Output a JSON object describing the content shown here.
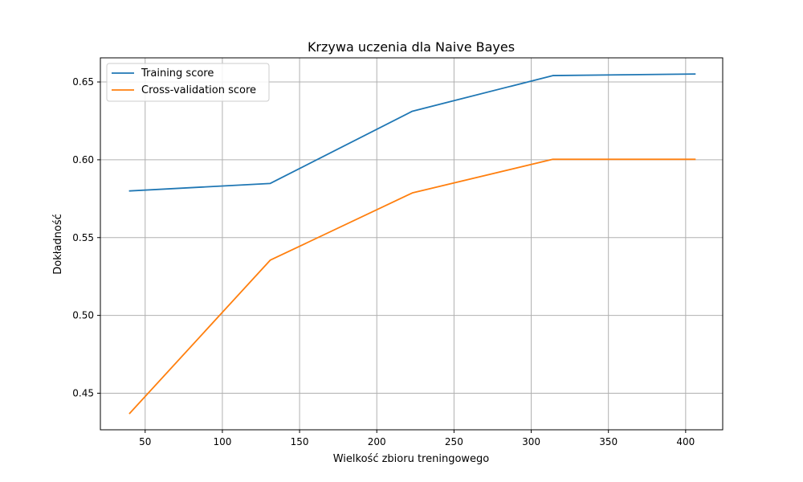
{
  "chart_data": {
    "type": "line",
    "title": "Krzywa uczenia dla Naive Bayes",
    "xlabel": "Wielkość zbioru treningowego",
    "ylabel": "Dokładność",
    "xlim": [
      21,
      424
    ],
    "ylim": [
      0.4265,
      0.6655
    ],
    "xticks": [
      50,
      100,
      150,
      200,
      250,
      300,
      350,
      400
    ],
    "yticks": [
      0.45,
      0.5,
      0.55,
      0.6,
      0.65
    ],
    "ytick_labels": [
      "0.45",
      "0.50",
      "0.55",
      "0.60",
      "0.65"
    ],
    "grid": true,
    "legend_position": "top-left",
    "x": [
      40,
      131,
      223,
      314,
      406
    ],
    "series": [
      {
        "name": "Training score",
        "color": "#1f77b4",
        "values": [
          0.58,
          0.5848,
          0.6312,
          0.6541,
          0.6551
        ]
      },
      {
        "name": "Cross-validation score",
        "color": "#ff7f0e",
        "values": [
          0.4371,
          0.5355,
          0.5787,
          0.6003,
          0.6003
        ]
      }
    ]
  }
}
